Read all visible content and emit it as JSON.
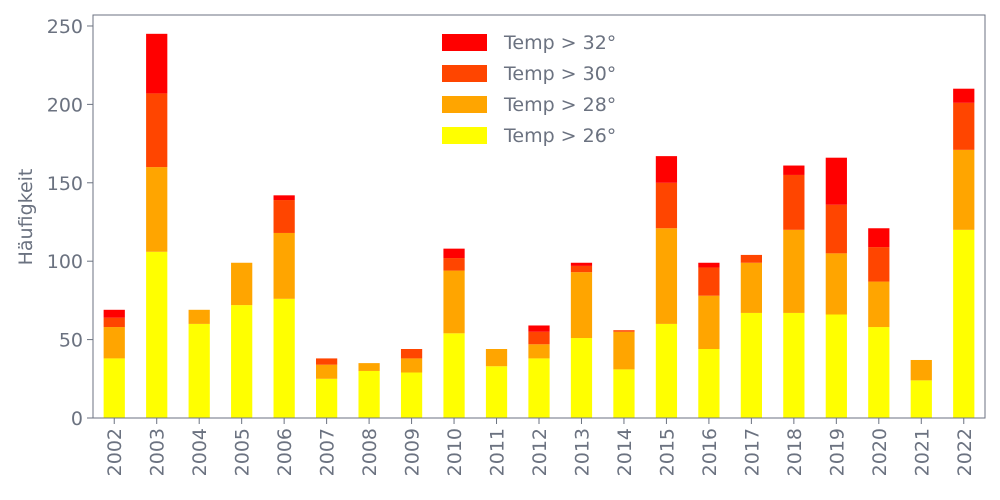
{
  "chart_data": {
    "type": "bar",
    "stacked": true,
    "title": "",
    "xlabel": "",
    "ylabel": "Häufigkeit",
    "ylim": [
      0,
      257
    ],
    "yticks": [
      0,
      50,
      100,
      150,
      200,
      250
    ],
    "grid": false,
    "legend_position": "top-center",
    "categories": [
      "2002",
      "2003",
      "2004",
      "2005",
      "2006",
      "2007",
      "2008",
      "2009",
      "2010",
      "2011",
      "2012",
      "2013",
      "2014",
      "2015",
      "2016",
      "2017",
      "2018",
      "2019",
      "2020",
      "2021",
      "2022"
    ],
    "series": [
      {
        "name": "Temp > 26°",
        "color": "#ffff00",
        "values": [
          38,
          106,
          60,
          72,
          76,
          25,
          30,
          29,
          54,
          33,
          38,
          51,
          31,
          60,
          44,
          67,
          67,
          66,
          58,
          24,
          120
        ]
      },
      {
        "name": "Temp > 28°",
        "color": "#ffa500",
        "values": [
          20,
          54,
          9,
          27,
          42,
          9,
          5,
          9,
          40,
          11,
          9,
          42,
          24,
          61,
          34,
          32,
          53,
          39,
          29,
          13,
          51
        ]
      },
      {
        "name": "Temp > 30°",
        "color": "#ff4500",
        "values": [
          6,
          47,
          0,
          0,
          21,
          4,
          0,
          6,
          8,
          0,
          8,
          4,
          1,
          29,
          18,
          5,
          35,
          31,
          22,
          0,
          30
        ]
      },
      {
        "name": "Temp > 32°",
        "color": "#ff0000",
        "values": [
          5,
          38,
          0,
          0,
          3,
          0,
          0,
          0,
          6,
          0,
          4,
          2,
          0,
          17,
          3,
          0,
          6,
          30,
          12,
          0,
          9
        ]
      }
    ]
  }
}
